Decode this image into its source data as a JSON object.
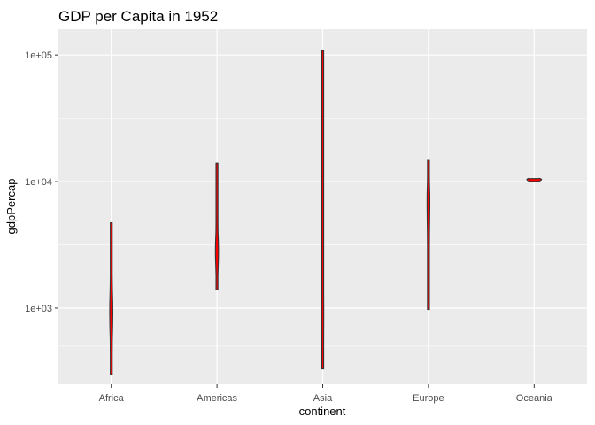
{
  "chart_data": {
    "type": "violin",
    "title": "GDP per Capita in 1952",
    "xlabel": "continent",
    "ylabel": "gdpPercap",
    "y_scale": "log10",
    "ylim": [
      250,
      160000
    ],
    "yticks": [
      1000,
      10000,
      100000
    ],
    "ytick_labels": [
      "1e+03",
      "1e+04",
      "1e+05"
    ],
    "categories": [
      "Africa",
      "Americas",
      "Asia",
      "Europe",
      "Oceania"
    ],
    "grid": true,
    "fill_color": "#ff0000",
    "outline_color": "#333333",
    "panel_background": "#ebebeb",
    "grid_color": "#ffffff",
    "violins": [
      {
        "category": "Africa",
        "profile": [
          [
            299,
            0.1
          ],
          [
            340,
            0.22
          ],
          [
            420,
            0.4
          ],
          [
            560,
            0.55
          ],
          [
            700,
            0.72
          ],
          [
            900,
            0.82
          ],
          [
            1100,
            0.78
          ],
          [
            1400,
            0.6
          ],
          [
            1800,
            0.4
          ],
          [
            2300,
            0.28
          ],
          [
            3000,
            0.2
          ],
          [
            3600,
            0.12
          ],
          [
            4200,
            0.06
          ],
          [
            4725,
            0.02
          ]
        ]
      },
      {
        "category": "Americas",
        "profile": [
          [
            1398,
            0.05
          ],
          [
            1550,
            0.2
          ],
          [
            1800,
            0.4
          ],
          [
            2100,
            0.62
          ],
          [
            2500,
            0.78
          ],
          [
            2900,
            0.82
          ],
          [
            3400,
            0.72
          ],
          [
            4000,
            0.55
          ],
          [
            4800,
            0.4
          ],
          [
            5800,
            0.28
          ],
          [
            7000,
            0.16
          ],
          [
            8500,
            0.08
          ],
          [
            10500,
            0.04
          ],
          [
            13990,
            0.02
          ]
        ]
      },
      {
        "category": "Asia",
        "profile": [
          [
            331,
            0.05
          ],
          [
            420,
            0.22
          ],
          [
            600,
            0.45
          ],
          [
            900,
            0.55
          ],
          [
            1300,
            0.5
          ],
          [
            1800,
            0.35
          ],
          [
            2500,
            0.2
          ],
          [
            3500,
            0.1
          ],
          [
            5000,
            0.05
          ],
          [
            8000,
            0.03
          ],
          [
            14000,
            0.02
          ],
          [
            30000,
            0.015
          ],
          [
            60000,
            0.012
          ],
          [
            108382,
            0.01
          ]
        ]
      },
      {
        "category": "Europe",
        "profile": [
          [
            974,
            0.02
          ],
          [
            1300,
            0.04
          ],
          [
            1800,
            0.08
          ],
          [
            2300,
            0.22
          ],
          [
            3000,
            0.4
          ],
          [
            4000,
            0.55
          ],
          [
            5200,
            0.65
          ],
          [
            6600,
            0.72
          ],
          [
            8000,
            0.7
          ],
          [
            9600,
            0.55
          ],
          [
            11000,
            0.35
          ],
          [
            12500,
            0.15
          ],
          [
            14000,
            0.05
          ],
          [
            14734,
            0.02
          ]
        ]
      },
      {
        "category": "Oceania",
        "profile": [
          [
            10040,
            2.2
          ],
          [
            10200,
            3.4
          ],
          [
            10300,
            3.7
          ],
          [
            10400,
            3.9
          ],
          [
            10500,
            3.6
          ],
          [
            10600,
            3.0
          ],
          [
            10556,
            2.2
          ]
        ]
      }
    ]
  }
}
